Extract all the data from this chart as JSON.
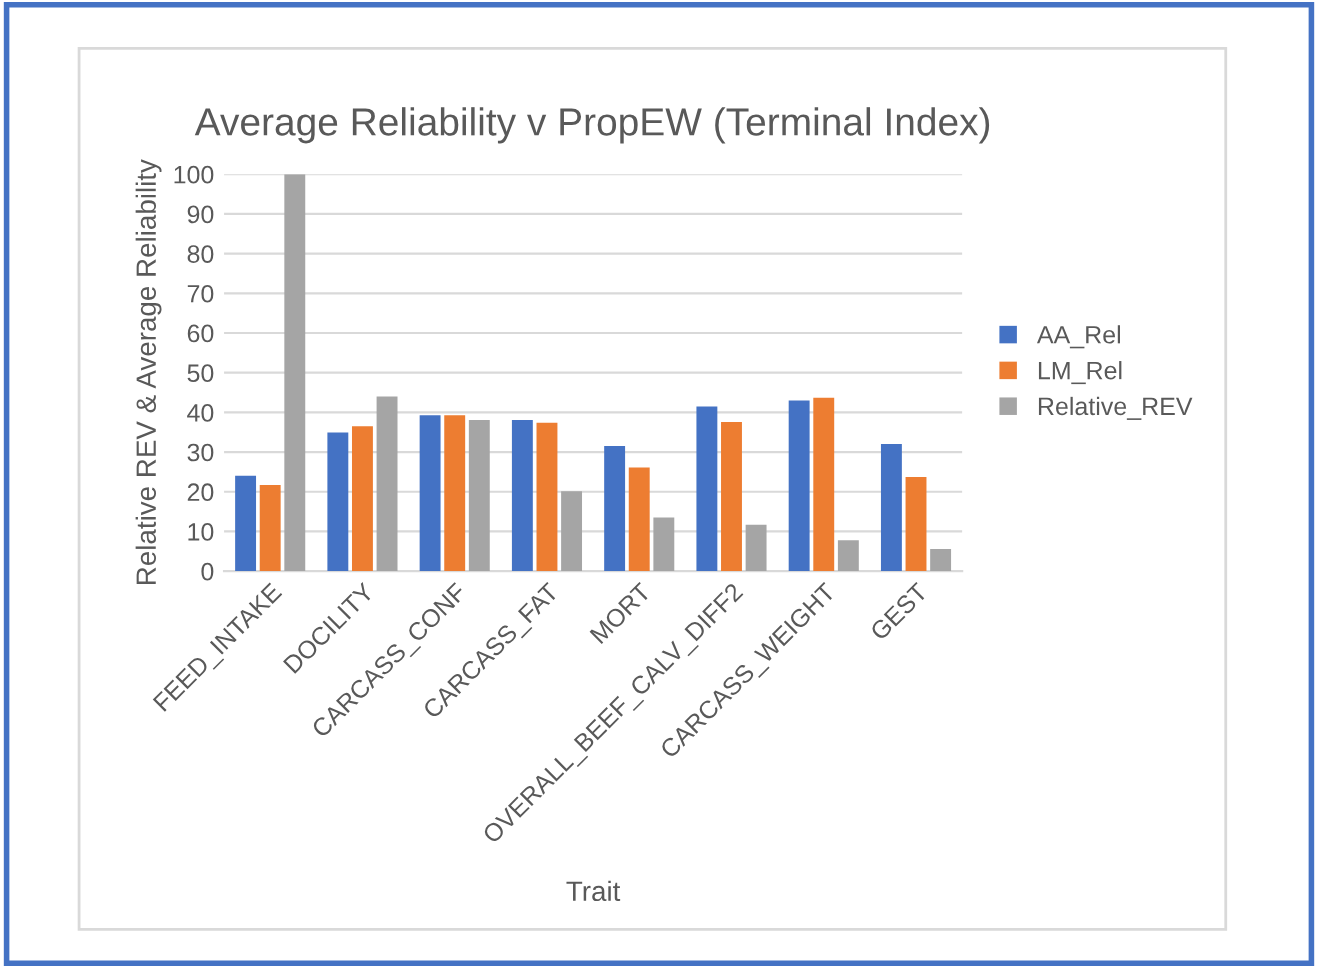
{
  "chart_data": {
    "type": "bar",
    "title": "Average Reliability v PropEW (Terminal Index)",
    "xlabel": "Trait",
    "ylabel": "Relative REV & Average Reliability",
    "categories": [
      "FEED_INTAKE",
      "DOCILITY",
      "CARCASS_CONF",
      "CARCASS_FAT",
      "MORT",
      "OVERALL_BEEF_CALV_DIFF2",
      "CARCASS_WEIGHT",
      "GEST"
    ],
    "series": [
      {
        "name": "AA_Rel",
        "color": "#4472c4",
        "values": [
          24.0,
          34.9,
          39.3,
          38.1,
          31.5,
          41.5,
          43.0,
          32.0
        ]
      },
      {
        "name": "LM_Rel",
        "color": "#ed7d31",
        "values": [
          21.7,
          36.5,
          39.3,
          37.4,
          26.1,
          37.6,
          43.7,
          23.7
        ]
      },
      {
        "name": "Relative_REV",
        "color": "#a5a5a5",
        "values": [
          100,
          44.0,
          38.1,
          20.1,
          13.5,
          11.7,
          7.8,
          5.6
        ]
      }
    ],
    "ylim": [
      0,
      100
    ],
    "yticks": [
      0,
      10,
      20,
      30,
      40,
      50,
      60,
      70,
      80,
      90,
      100
    ],
    "grid": "y",
    "legend": "right"
  }
}
